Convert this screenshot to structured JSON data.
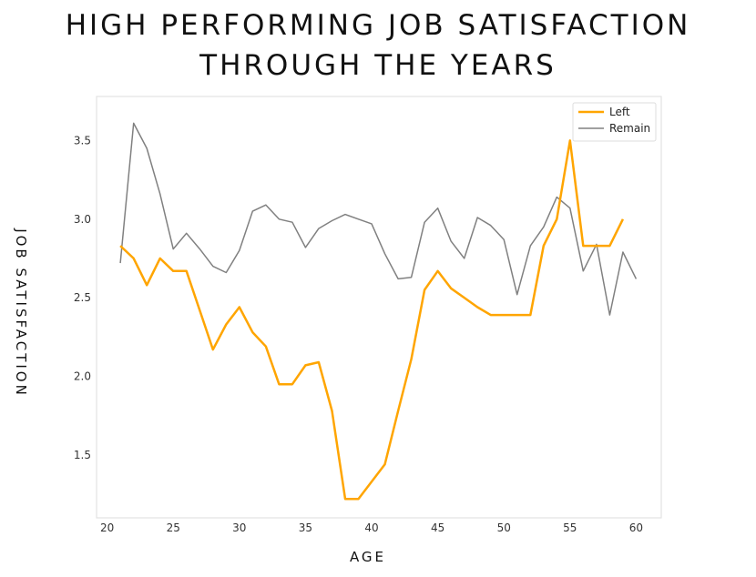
{
  "title_line1": "HIGH PERFORMING JOB SATISFACTION",
  "title_line2": "THROUGH THE YEARS",
  "chart_data": {
    "type": "line",
    "xlabel": "AGE",
    "ylabel": "JOB SATISFACTION",
    "xlim": [
      19.2,
      61.9
    ],
    "ylim": [
      1.1,
      3.78
    ],
    "xticks": [
      20,
      25,
      30,
      35,
      40,
      45,
      50,
      55,
      60
    ],
    "yticks": [
      1.5,
      2.0,
      2.5,
      3.0,
      3.5
    ],
    "grid": false,
    "legend": "top-right",
    "series": [
      {
        "name": "Left",
        "color": "#FFA500",
        "x": [
          21,
          22,
          23,
          24,
          25,
          26,
          27,
          28,
          29,
          30,
          31,
          32,
          33,
          34,
          35,
          36,
          37,
          38,
          39,
          40,
          41,
          42,
          43,
          44,
          45,
          46,
          47,
          48,
          49,
          50,
          51,
          52,
          53,
          54,
          55,
          56,
          57,
          58,
          59
        ],
        "values": [
          2.83,
          2.75,
          2.58,
          2.75,
          2.67,
          2.67,
          2.42,
          2.17,
          2.33,
          2.44,
          2.28,
          2.19,
          1.95,
          1.95,
          2.07,
          2.09,
          1.78,
          1.22,
          1.22,
          1.33,
          1.44,
          1.78,
          2.11,
          2.55,
          2.67,
          2.56,
          2.5,
          2.44,
          2.39,
          2.39,
          2.39,
          2.39,
          2.83,
          3.0,
          3.5,
          2.83,
          2.83,
          2.83,
          3.0
        ]
      },
      {
        "name": "Remain",
        "color": "#808080",
        "x": [
          21,
          22,
          23,
          24,
          25,
          26,
          27,
          28,
          29,
          30,
          31,
          32,
          33,
          34,
          35,
          36,
          37,
          38,
          39,
          40,
          41,
          42,
          43,
          44,
          45,
          46,
          47,
          48,
          49,
          50,
          51,
          52,
          53,
          54,
          55,
          56,
          57,
          58,
          59,
          60
        ],
        "values": [
          2.72,
          3.61,
          3.45,
          3.16,
          2.81,
          2.91,
          2.81,
          2.7,
          2.66,
          2.8,
          3.05,
          3.09,
          3.0,
          2.98,
          2.82,
          2.94,
          2.99,
          3.03,
          3.0,
          2.97,
          2.78,
          2.62,
          2.63,
          2.98,
          3.07,
          2.86,
          2.75,
          3.01,
          2.96,
          2.87,
          2.52,
          2.83,
          2.95,
          3.14,
          3.07,
          2.67,
          2.84,
          2.39,
          2.79,
          2.62
        ]
      }
    ]
  }
}
